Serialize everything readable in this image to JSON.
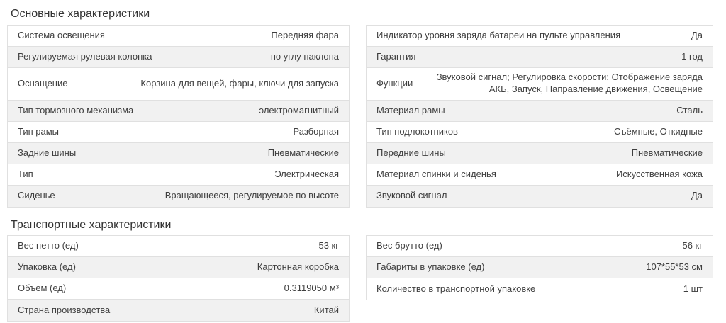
{
  "colors": {
    "row_stripe": "#f1f1f1",
    "border": "#e0e0e0",
    "text": "#3f3f3f",
    "title_text": "#333333",
    "bg": "#ffffff"
  },
  "sections": [
    {
      "title": "Основные характеристики",
      "columns": [
        {
          "rows": [
            {
              "label": "Система освещения",
              "value": "Передняя фара"
            },
            {
              "label": "Регулируемая рулевая колонка",
              "value": "по углу наклона"
            },
            {
              "label": "Оснащение",
              "value": "Корзина для вещей, фары, ключи для запуска",
              "tall": true
            },
            {
              "label": "Тип тормозного механизма",
              "value": "электромагнитный"
            },
            {
              "label": "Тип рамы",
              "value": "Разборная"
            },
            {
              "label": "Задние шины",
              "value": "Пневматические"
            },
            {
              "label": "Тип",
              "value": "Электрическая"
            },
            {
              "label": "Сиденье",
              "value": "Вращающееся, регулируемое по высоте"
            }
          ]
        },
        {
          "rows": [
            {
              "label": "Индикатор уровня заряда батареи на пульте управления",
              "value": "Да"
            },
            {
              "label": "Гарантия",
              "value": "1 год"
            },
            {
              "label": "Функции",
              "value": "Звуковой сигнал; Регулировка скорости; Отображение заряда АКБ, Запуск, Направление движения, Освещение",
              "tall": true
            },
            {
              "label": "Материал рамы",
              "value": "Сталь"
            },
            {
              "label": "Тип подлокотников",
              "value": "Съёмные, Откидные"
            },
            {
              "label": "Передние шины",
              "value": "Пневматические"
            },
            {
              "label": "Материал спинки и сиденья",
              "value": "Искусственная кожа"
            },
            {
              "label": "Звуковой сигнал",
              "value": "Да"
            }
          ]
        }
      ]
    },
    {
      "title": "Транспортные характеристики",
      "columns": [
        {
          "rows": [
            {
              "label": "Вес нетто (ед)",
              "value": "53 кг"
            },
            {
              "label": "Упаковка (ед)",
              "value": "Картонная коробка"
            },
            {
              "label": "Объем (ед)",
              "value": "0.3119050 м³"
            },
            {
              "label": "Страна производства",
              "value": "Китай"
            }
          ]
        },
        {
          "rows": [
            {
              "label": "Вес брутто (ед)",
              "value": "56 кг"
            },
            {
              "label": "Габариты в упаковке (ед)",
              "value": "107*55*53 см"
            },
            {
              "label": "Количество в транспортной упаковке",
              "value": "1 шт"
            }
          ]
        }
      ]
    }
  ]
}
